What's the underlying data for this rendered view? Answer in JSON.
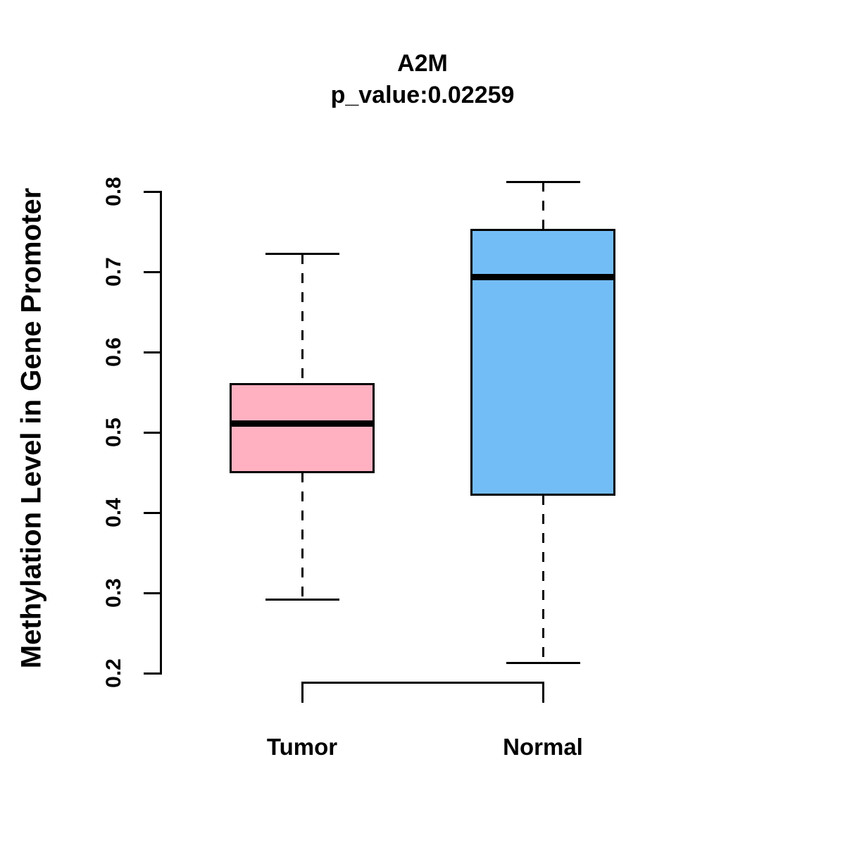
{
  "header": {
    "title": "A2M",
    "subtitle": "p_value:0.02259"
  },
  "chart_data": {
    "type": "boxplot",
    "title": "A2M",
    "subtitle": "p_value:0.02259",
    "ylabel": "Methylation Level in Gene Promoter",
    "xlabel": "",
    "categories": [
      "Tumor",
      "Normal"
    ],
    "y_ticks": [
      0.2,
      0.3,
      0.4,
      0.5,
      0.6,
      0.7,
      0.8
    ],
    "y_tick_labels": [
      "0.2",
      "0.3",
      "0.4",
      "0.5",
      "0.6",
      "0.7",
      "0.8"
    ],
    "ylim": [
      0.2,
      0.8
    ],
    "grid": "off",
    "legend": "none",
    "series": [
      {
        "name": "Tumor",
        "fill_color": "#FFB1C1",
        "line_color": "#000000",
        "whisker_low": 0.292,
        "q1": 0.45,
        "median": 0.511,
        "q3": 0.56,
        "whisker_high": 0.722
      },
      {
        "name": "Normal",
        "fill_color": "#73BDF7",
        "line_color": "#000000",
        "whisker_low": 0.213,
        "q1": 0.422,
        "median": 0.693,
        "q3": 0.752,
        "whisker_high": 0.812
      }
    ]
  }
}
